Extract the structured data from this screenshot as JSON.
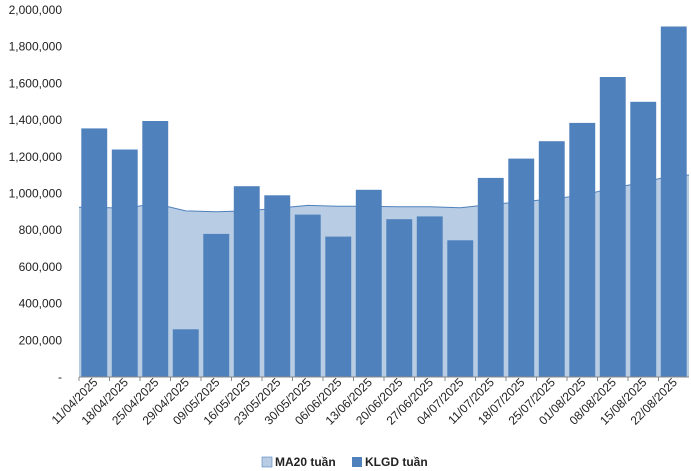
{
  "chart_data": {
    "type": "bar",
    "categories": [
      "11/04/2025",
      "18/04/2025",
      "25/04/2025",
      "29/04/2025",
      "09/05/2025",
      "16/05/2025",
      "23/05/2025",
      "30/05/2025",
      "06/06/2025",
      "13/06/2025",
      "20/06/2025",
      "27/06/2025",
      "04/07/2025",
      "11/07/2025",
      "18/07/2025",
      "25/07/2025",
      "01/08/2025",
      "08/08/2025",
      "15/08/2025",
      "22/08/2025"
    ],
    "series": [
      {
        "name": "MA20 tuần",
        "type": "area",
        "color": "#b8cce4",
        "stroke": "#4f81bd",
        "values": [
          925000,
          920000,
          945000,
          905000,
          900000,
          905000,
          920000,
          935000,
          930000,
          930000,
          928000,
          928000,
          922000,
          940000,
          955000,
          970000,
          990000,
          1030000,
          1060000,
          1100000
        ]
      },
      {
        "name": "KLGD tuần",
        "type": "bar",
        "color": "#4f81bd",
        "values": [
          1355000,
          1240000,
          1395000,
          260000,
          780000,
          1040000,
          990000,
          885000,
          765000,
          1020000,
          860000,
          875000,
          745000,
          1085000,
          1190000,
          1285000,
          1385000,
          1635000,
          1500000,
          1910000
        ]
      }
    ],
    "y_ticks": [
      "-",
      "200,000",
      "400,000",
      "600,000",
      "800,000",
      "1,000,000",
      "1,200,000",
      "1,400,000",
      "1,600,000",
      "1,800,000",
      "2,000,000"
    ],
    "ylim": [
      0,
      2000000
    ],
    "legend_position": "bottom-center",
    "grid": false
  }
}
